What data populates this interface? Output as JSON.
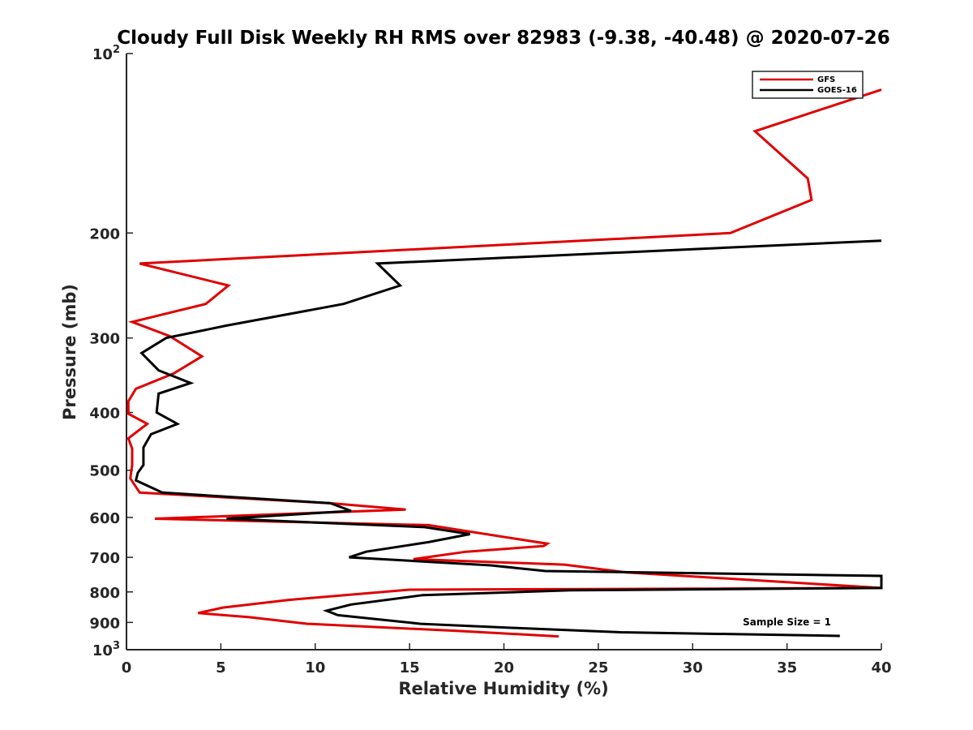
{
  "chart_data": {
    "type": "line",
    "title": "Cloudy Full Disk Weekly RH RMS over 82983 (-9.38, -40.48) @ 2020-07-26",
    "xlabel": "Relative Humidity (%)",
    "ylabel": "Pressure (mb)",
    "xlim": [
      0,
      40
    ],
    "ylim": [
      100,
      1000
    ],
    "y_scale": "log",
    "y_reversed": true,
    "x_ticks": [
      "0",
      "5",
      "10",
      "15",
      "20",
      "25",
      "30",
      "35",
      "40"
    ],
    "y_ticks": [
      {
        "value": 100,
        "label": "10",
        "sup": "2"
      },
      {
        "value": 200,
        "label": "200",
        "sup": ""
      },
      {
        "value": 300,
        "label": "300",
        "sup": ""
      },
      {
        "value": 400,
        "label": "400",
        "sup": ""
      },
      {
        "value": 500,
        "label": "500",
        "sup": ""
      },
      {
        "value": 600,
        "label": "600",
        "sup": ""
      },
      {
        "value": 700,
        "label": "700",
        "sup": ""
      },
      {
        "value": 800,
        "label": "800",
        "sup": ""
      },
      {
        "value": 900,
        "label": "900",
        "sup": ""
      },
      {
        "value": 1000,
        "label": "10",
        "sup": "3"
      }
    ],
    "legend_position": "top-right",
    "annotation": "Sample Size = 1",
    "series": [
      {
        "name": "GFS",
        "color": "#e00000",
        "points": [
          [
            40,
            115
          ],
          [
            33.3,
            135
          ],
          [
            36.1,
            162
          ],
          [
            36.3,
            176
          ],
          [
            32.0,
            200
          ],
          [
            0.7,
            225
          ],
          [
            5.4,
            245
          ],
          [
            4.2,
            263
          ],
          [
            0.3,
            282
          ],
          [
            2.3,
            298
          ],
          [
            4.0,
            322
          ],
          [
            2.5,
            344
          ],
          [
            0.5,
            365
          ],
          [
            0.1,
            383
          ],
          [
            0.1,
            402
          ],
          [
            1.1,
            418
          ],
          [
            0.1,
            442
          ],
          [
            0.3,
            460
          ],
          [
            0.3,
            490
          ],
          [
            0.2,
            516
          ],
          [
            0.7,
            545
          ],
          [
            10.8,
            568
          ],
          [
            14.8,
            582
          ],
          [
            1.5,
            603
          ],
          [
            16.0,
            618
          ],
          [
            22.3,
            664
          ],
          [
            22.1,
            670
          ],
          [
            18.0,
            685
          ],
          [
            15.2,
            705
          ],
          [
            23.2,
            720
          ],
          [
            26.5,
            742
          ],
          [
            40,
            788
          ],
          [
            40,
            788
          ],
          [
            15.0,
            793
          ],
          [
            8.6,
            825
          ],
          [
            5.1,
            850
          ],
          [
            3.8,
            868
          ],
          [
            6.5,
            882
          ],
          [
            9.6,
            905
          ],
          [
            17.5,
            930
          ],
          [
            22.9,
            950
          ]
        ]
      },
      {
        "name": "GOES-16",
        "color": "#000000",
        "points": [
          [
            40,
            206
          ],
          [
            13.3,
            225
          ],
          [
            14.5,
            245
          ],
          [
            11.5,
            263
          ],
          [
            5.3,
            286
          ],
          [
            2.1,
            300
          ],
          [
            0.8,
            318
          ],
          [
            1.7,
            340
          ],
          [
            3.4,
            357
          ],
          [
            1.7,
            372
          ],
          [
            1.6,
            400
          ],
          [
            2.7,
            418
          ],
          [
            1.3,
            435
          ],
          [
            0.9,
            458
          ],
          [
            0.9,
            490
          ],
          [
            0.6,
            505
          ],
          [
            0.5,
            520
          ],
          [
            1.9,
            545
          ],
          [
            10.8,
            568
          ],
          [
            11.9,
            585
          ],
          [
            5.3,
            603
          ],
          [
            15.8,
            623
          ],
          [
            18.2,
            640
          ],
          [
            16.0,
            660
          ],
          [
            12.7,
            685
          ],
          [
            11.8,
            700
          ],
          [
            19.3,
            722
          ],
          [
            22.2,
            738
          ],
          [
            40,
            752
          ],
          [
            40,
            788
          ],
          [
            23.5,
            795
          ],
          [
            15.7,
            810
          ],
          [
            11.9,
            840
          ],
          [
            10.6,
            860
          ],
          [
            11.2,
            875
          ],
          [
            15.6,
            905
          ],
          [
            20.8,
            920
          ],
          [
            26.2,
            935
          ],
          [
            37.8,
            948
          ]
        ]
      }
    ]
  }
}
